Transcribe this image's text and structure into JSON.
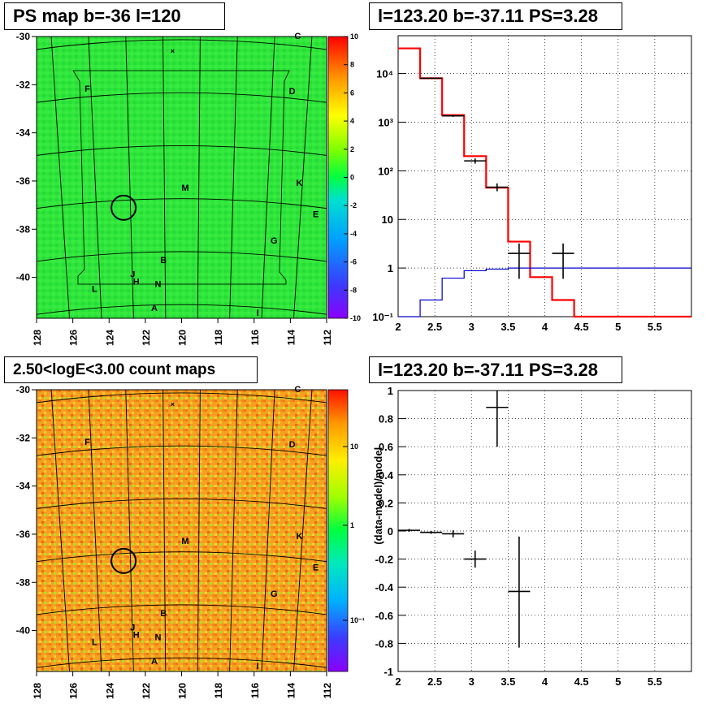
{
  "panels": {
    "ps_map": {
      "title": "PS map b=-36 l=120"
    },
    "spectrum": {
      "title": "l=123.20 b=-37.11 PS=3.28"
    },
    "count_map": {
      "title": "2.50<logE<3.00 count maps"
    },
    "residual": {
      "title": "l=123.20 b=-37.11 PS=3.28"
    }
  },
  "sky": {
    "lon_ticks": [
      "128",
      "126",
      "124",
      "122",
      "120",
      "118",
      "116",
      "114",
      "112"
    ],
    "lat_ticks": [
      "-30",
      "-32",
      "-34",
      "-36",
      "-38",
      "-40"
    ],
    "source_labels": [
      {
        "t": "C",
        "l": 113.6,
        "b": -30.1
      },
      {
        "t": "F",
        "l": 125.2,
        "b": -32.3
      },
      {
        "t": "D",
        "l": 113.9,
        "b": -32.4
      },
      {
        "t": "M",
        "l": 119.8,
        "b": -36.4
      },
      {
        "t": "K",
        "l": 113.5,
        "b": -36.2
      },
      {
        "t": "E",
        "l": 112.6,
        "b": -37.5
      },
      {
        "t": "G",
        "l": 114.9,
        "b": -38.6
      },
      {
        "t": "B",
        "l": 121.0,
        "b": -39.4
      },
      {
        "t": "J",
        "l": 122.7,
        "b": -40.0
      },
      {
        "t": "H",
        "l": 122.5,
        "b": -40.3
      },
      {
        "t": "N",
        "l": 121.3,
        "b": -40.4
      },
      {
        "t": "L",
        "l": 124.8,
        "b": -40.6
      },
      {
        "t": "A",
        "l": 121.5,
        "b": -41.4
      },
      {
        "t": "I",
        "l": 115.8,
        "b": -41.6
      }
    ],
    "cross_marker": {
      "l": 120.5,
      "b": -30.7
    },
    "circle": {
      "l": 123.2,
      "b": -37.11
    }
  },
  "colorbars": {
    "ps_map": [
      "10",
      "8",
      "6",
      "4",
      "2",
      "0",
      "-2",
      "-4",
      "-6",
      "-8",
      "-10"
    ],
    "count_map": {
      "major": [
        "10",
        "1",
        "10⁻¹"
      ]
    }
  },
  "chart_data": [
    {
      "type": "line",
      "panel": "spectrum",
      "xlim": [
        2,
        6
      ],
      "ylim": [
        0.1,
        60000
      ],
      "yscale": "log",
      "x_ticks": [
        "2",
        "2.5",
        "3",
        "3.5",
        "4",
        "4.5",
        "5",
        "5.5"
      ],
      "y_ticks": [
        "10⁻¹",
        "1",
        "10",
        "10²",
        "10³",
        "10⁴"
      ],
      "grid": true,
      "series": [
        {
          "color": "#ff0000",
          "type": "step",
          "bins": [
            [
              2.0,
              2.3,
              33000
            ],
            [
              2.3,
              2.6,
              8000
            ],
            [
              2.6,
              2.9,
              1400
            ],
            [
              2.9,
              3.2,
              200
            ],
            [
              3.2,
              3.5,
              45
            ],
            [
              3.5,
              3.8,
              3.5
            ],
            [
              3.8,
              4.1,
              0.65
            ],
            [
              4.1,
              4.4,
              0.22
            ],
            [
              4.4,
              6.0,
              0.1
            ]
          ]
        },
        {
          "color": "#0000cc",
          "type": "step",
          "bins": [
            [
              2.0,
              2.3,
              0.07
            ],
            [
              2.3,
              2.6,
              0.22
            ],
            [
              2.6,
              2.9,
              0.62
            ],
            [
              2.9,
              3.2,
              0.88
            ],
            [
              3.2,
              3.5,
              0.95
            ],
            [
              3.5,
              3.8,
              1.0
            ],
            [
              3.8,
              6.0,
              1.0
            ]
          ]
        },
        {
          "color": "#000000",
          "type": "errorbar",
          "points": [
            {
              "x": 2.45,
              "xerr": 0.15,
              "y": 8000,
              "ylo": 7800,
              "yhi": 8200
            },
            {
              "x": 2.75,
              "xerr": 0.15,
              "y": 1350,
              "ylo": 1290,
              "yhi": 1410
            },
            {
              "x": 3.05,
              "xerr": 0.15,
              "y": 160,
              "ylo": 140,
              "yhi": 180
            },
            {
              "x": 3.35,
              "xerr": 0.15,
              "y": 46,
              "ylo": 38,
              "yhi": 55
            },
            {
              "x": 3.65,
              "xerr": 0.15,
              "y": 2,
              "ylo": 0.6,
              "yhi": 3.2
            },
            {
              "x": 4.25,
              "xerr": 0.15,
              "y": 2,
              "ylo": 0.6,
              "yhi": 3.2
            }
          ]
        }
      ]
    },
    {
      "type": "scatter",
      "panel": "residual",
      "xlim": [
        2,
        6
      ],
      "ylim": [
        -1,
        1
      ],
      "ylabel": "(data-model)/model",
      "x_ticks": [
        "2",
        "2.5",
        "3",
        "3.5",
        "4",
        "4.5",
        "5",
        "5.5"
      ],
      "y_ticks": [
        "-1",
        "-0.8",
        "-0.6",
        "-0.4",
        "-0.2",
        "0",
        "0.2",
        "0.4",
        "0.6",
        "0.8",
        "1"
      ],
      "grid": true,
      "points": [
        {
          "x": 2.15,
          "xerr": 0.15,
          "y": 0.005,
          "ylo": -0.005,
          "yhi": 0.015
        },
        {
          "x": 2.45,
          "xerr": 0.15,
          "y": -0.01,
          "ylo": -0.02,
          "yhi": 0.0
        },
        {
          "x": 2.75,
          "xerr": 0.15,
          "y": -0.02,
          "ylo": -0.045,
          "yhi": 0.005
        },
        {
          "x": 3.05,
          "xerr": 0.15,
          "y": -0.2,
          "ylo": -0.26,
          "yhi": -0.14
        },
        {
          "x": 3.35,
          "xerr": 0.15,
          "y": 0.88,
          "ylo": 0.6,
          "yhi": 1.0
        },
        {
          "x": 3.65,
          "xerr": 0.15,
          "y": -0.43,
          "ylo": -0.83,
          "yhi": -0.04
        }
      ]
    }
  ]
}
